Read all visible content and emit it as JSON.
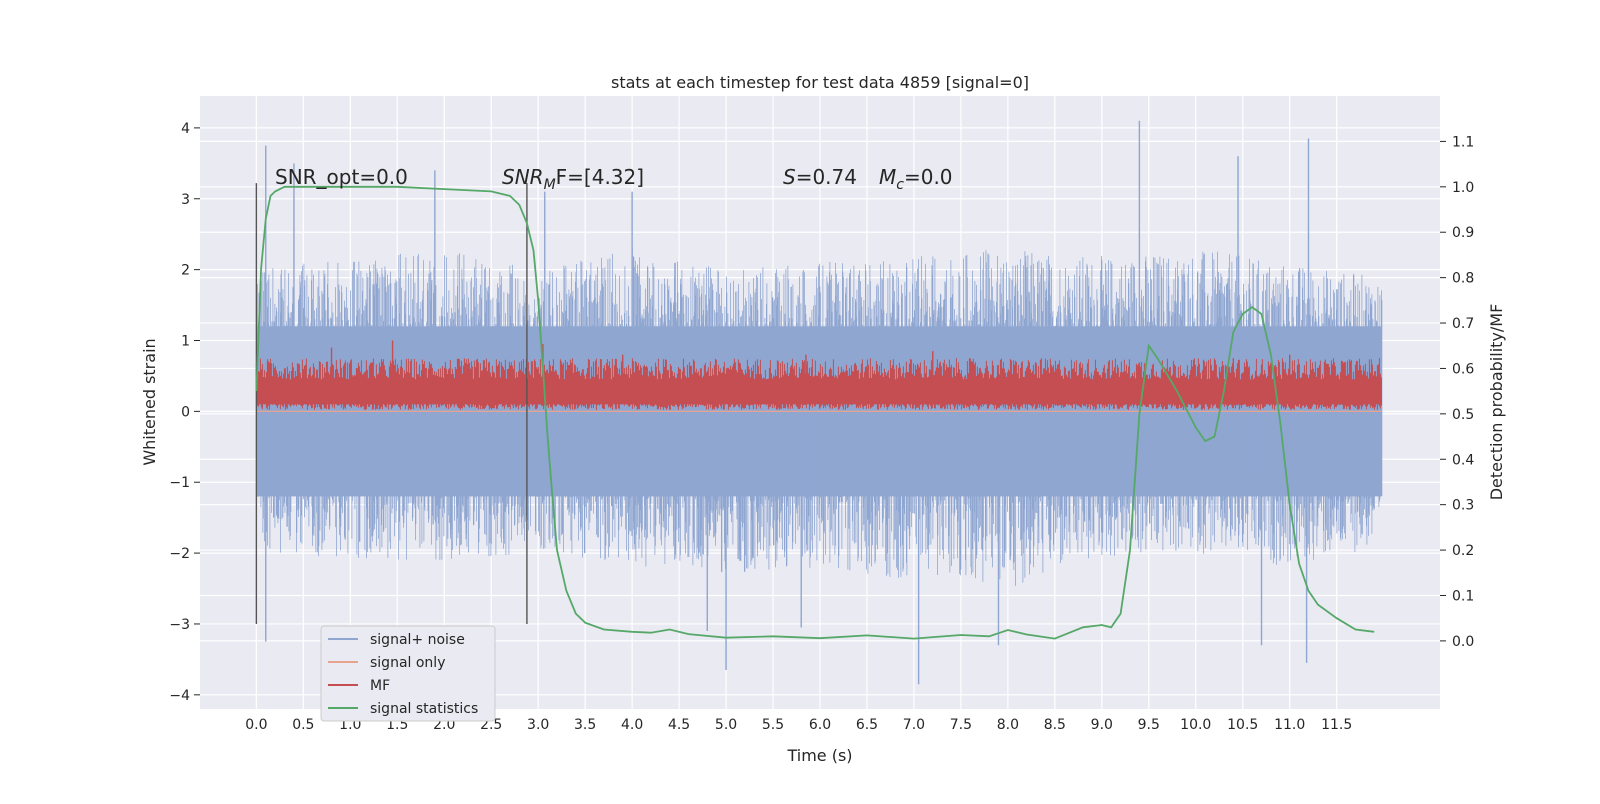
{
  "chart_data": {
    "type": "line",
    "title": "stats at each timestep for test data 4859 [signal=0]",
    "xlabel": "Time (s)",
    "ylabel": "Whitened strain",
    "y2label": "Detection probability/MF",
    "xlim": [
      -0.6,
      12.6
    ],
    "ylim": [
      -4.2,
      4.45
    ],
    "y2lim": [
      -0.15,
      1.2
    ],
    "x_ticks": [
      0.0,
      0.5,
      1.0,
      1.5,
      2.0,
      2.5,
      3.0,
      3.5,
      4.0,
      4.5,
      5.0,
      5.5,
      6.0,
      6.5,
      7.0,
      7.5,
      8.0,
      8.5,
      9.0,
      9.5,
      10.0,
      10.5,
      11.0,
      11.5
    ],
    "x_tick_labels": [
      "0.0",
      "0.5",
      "1.0",
      "1.5",
      "2.0",
      "2.5",
      "3.0",
      "3.5",
      "4.0",
      "4.5",
      "5.0",
      "5.5",
      "6.0",
      "6.5",
      "7.0",
      "7.5",
      "8.0",
      "8.5",
      "9.0",
      "9.5",
      "10.0",
      "10.5",
      "11.0",
      "11.5"
    ],
    "y_ticks": [
      -4,
      -3,
      -2,
      -1,
      0,
      1,
      2,
      3,
      4
    ],
    "y_tick_labels": [
      "−4",
      "−3",
      "−2",
      "−1",
      "0",
      "1",
      "2",
      "3",
      "4"
    ],
    "y2_ticks": [
      0.0,
      0.1,
      0.2,
      0.3,
      0.4,
      0.5,
      0.6,
      0.7,
      0.8,
      0.9,
      1.0,
      1.1
    ],
    "y2_tick_labels": [
      "0.0",
      "0.1",
      "0.2",
      "0.3",
      "0.4",
      "0.5",
      "0.6",
      "0.7",
      "0.8",
      "0.9",
      "1.0",
      "1.1"
    ],
    "grid": true,
    "legend_position": "lower-left",
    "annotations": {
      "snr_opt": "SNR_opt=0.0",
      "snr_mf_label": "SNR",
      "snr_mf_sub": "M",
      "snr_mf_rest": "F=[4.32]",
      "s_label": "S",
      "s_value": "=0.74",
      "mc_label": "M",
      "mc_sub": "c",
      "mc_value": "=0.0"
    },
    "vertical_lines": [
      {
        "x": 0.0,
        "ymin": -3.0,
        "ymax": 3.22
      },
      {
        "x": 2.88,
        "ymin": -3.0,
        "ymax": 3.22
      }
    ],
    "series": [
      {
        "name": "signal+ noise",
        "color": "#8fa6d1",
        "axis": "left",
        "x_range": [
          0.0,
          11.98
        ],
        "envelope_upper": [
          [
            0.0,
            2.0
          ],
          [
            1.0,
            2.2
          ],
          [
            2.0,
            2.3
          ],
          [
            3.0,
            2.0
          ],
          [
            4.0,
            2.3
          ],
          [
            5.0,
            2.0
          ],
          [
            6.0,
            2.1
          ],
          [
            7.0,
            2.2
          ],
          [
            8.0,
            2.3
          ],
          [
            9.0,
            2.2
          ],
          [
            10.0,
            2.3
          ],
          [
            11.0,
            2.1
          ],
          [
            11.98,
            1.9
          ]
        ],
        "envelope_lower": [
          [
            0.0,
            -2.0
          ],
          [
            1.0,
            -2.1
          ],
          [
            2.0,
            -2.1
          ],
          [
            3.0,
            -2.0
          ],
          [
            4.0,
            -2.2
          ],
          [
            5.0,
            -2.3
          ],
          [
            6.0,
            -2.2
          ],
          [
            7.0,
            -2.4
          ],
          [
            8.0,
            -2.5
          ],
          [
            9.0,
            -2.1
          ],
          [
            10.0,
            -2.0
          ],
          [
            11.0,
            -2.2
          ],
          [
            11.98,
            -1.9
          ]
        ],
        "notable_peaks": [
          [
            0.1,
            3.75
          ],
          [
            0.4,
            3.5
          ],
          [
            1.9,
            3.4
          ],
          [
            3.07,
            3.1
          ],
          [
            4.0,
            3.1
          ],
          [
            9.4,
            4.1
          ],
          [
            10.45,
            3.6
          ],
          [
            11.2,
            3.85
          ],
          [
            0.1,
            -3.25
          ],
          [
            4.8,
            -3.1
          ],
          [
            5.0,
            -3.65
          ],
          [
            5.8,
            -3.05
          ],
          [
            7.05,
            -3.85
          ],
          [
            7.9,
            -3.3
          ],
          [
            11.18,
            -3.55
          ],
          [
            10.7,
            -3.3
          ]
        ]
      },
      {
        "name": "signal only",
        "color": "#e8a38f",
        "axis": "left",
        "x": [
          0.0,
          11.98
        ],
        "y": [
          0.0,
          0.0
        ]
      },
      {
        "name": "MF",
        "color": "#c44e52",
        "axis": "left",
        "x_range": [
          0.0,
          11.98
        ],
        "band": [
          0.05,
          0.6
        ],
        "notable_peaks": [
          [
            0.8,
            0.9
          ],
          [
            1.45,
            1.0
          ],
          [
            3.05,
            0.95
          ],
          [
            3.9,
            0.8
          ],
          [
            5.85,
            0.8
          ],
          [
            7.2,
            0.85
          ],
          [
            10.4,
            0.75
          ],
          [
            11.0,
            0.8
          ]
        ]
      },
      {
        "name": "signal statistics",
        "color": "#55a868",
        "axis": "right",
        "x": [
          0.0,
          0.05,
          0.1,
          0.15,
          0.2,
          0.3,
          0.5,
          0.8,
          1.0,
          1.5,
          2.0,
          2.5,
          2.7,
          2.8,
          2.88,
          2.95,
          3.0,
          3.05,
          3.1,
          3.15,
          3.2,
          3.3,
          3.4,
          3.5,
          3.7,
          4.0,
          4.2,
          4.4,
          4.6,
          5.0,
          5.5,
          6.0,
          6.5,
          7.0,
          7.5,
          7.8,
          8.0,
          8.2,
          8.5,
          8.8,
          9.0,
          9.1,
          9.2,
          9.3,
          9.4,
          9.5,
          9.6,
          9.8,
          10.0,
          10.1,
          10.2,
          10.3,
          10.4,
          10.5,
          10.6,
          10.7,
          10.8,
          10.9,
          11.0,
          11.1,
          11.2,
          11.3,
          11.5,
          11.7,
          11.9
        ],
        "y": [
          0.55,
          0.82,
          0.93,
          0.98,
          0.99,
          1.0,
          1.0,
          1.0,
          1.0,
          1.0,
          0.995,
          0.99,
          0.98,
          0.96,
          0.92,
          0.86,
          0.75,
          0.6,
          0.45,
          0.32,
          0.2,
          0.11,
          0.06,
          0.04,
          0.025,
          0.02,
          0.018,
          0.025,
          0.015,
          0.007,
          0.01,
          0.006,
          0.012,
          0.005,
          0.013,
          0.01,
          0.024,
          0.014,
          0.005,
          0.03,
          0.035,
          0.03,
          0.06,
          0.2,
          0.5,
          0.65,
          0.62,
          0.55,
          0.47,
          0.44,
          0.45,
          0.55,
          0.68,
          0.72,
          0.735,
          0.72,
          0.63,
          0.48,
          0.3,
          0.17,
          0.11,
          0.08,
          0.05,
          0.025,
          0.02
        ]
      }
    ]
  }
}
